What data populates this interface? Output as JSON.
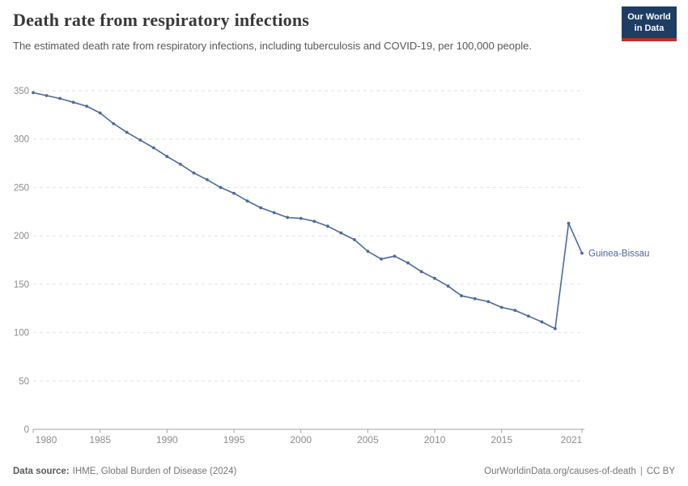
{
  "header": {
    "title": "Death rate from respiratory infections",
    "subtitle": "The estimated death rate from respiratory infections, including tuberculosis and COVID-19, per 100,000 people."
  },
  "logo": {
    "line1": "Our World",
    "line2": "in Data",
    "bg_color": "#1d3d63",
    "stripe_color": "#bc2f2a"
  },
  "chart_data": {
    "type": "line",
    "title": "Death rate from respiratory infections",
    "xlabel": "",
    "ylabel": "",
    "x": [
      1980,
      1981,
      1982,
      1983,
      1984,
      1985,
      1986,
      1987,
      1988,
      1989,
      1990,
      1991,
      1992,
      1993,
      1994,
      1995,
      1996,
      1997,
      1998,
      1999,
      2000,
      2001,
      2002,
      2003,
      2004,
      2005,
      2006,
      2007,
      2008,
      2009,
      2010,
      2011,
      2012,
      2013,
      2014,
      2015,
      2016,
      2017,
      2018,
      2019,
      2020,
      2021
    ],
    "series": [
      {
        "name": "Guinea-Bissau",
        "color": "#4c6a9c",
        "values": [
          348,
          345,
          342,
          338,
          334,
          327,
          316,
          307,
          299,
          291,
          282,
          274,
          265,
          258,
          250,
          244,
          236,
          229,
          224,
          219,
          218,
          215,
          210,
          203,
          196,
          184,
          176,
          179,
          172,
          163,
          156,
          148,
          138,
          135,
          132,
          126,
          123,
          117,
          111,
          104,
          213,
          182
        ]
      }
    ],
    "end_label": "Guinea-Bissau",
    "xlim": [
      1980,
      2021
    ],
    "ylim": [
      0,
      350
    ],
    "x_ticks": [
      "1980",
      "1985",
      "1990",
      "1995",
      "2000",
      "2005",
      "2010",
      "2015",
      "2021"
    ],
    "x_tick_values": [
      1980,
      1985,
      1990,
      1995,
      2000,
      2005,
      2010,
      2015,
      2021
    ],
    "y_ticks": [
      "0",
      "50",
      "100",
      "150",
      "200",
      "250",
      "300",
      "350"
    ],
    "y_tick_values": [
      0,
      50,
      100,
      150,
      200,
      250,
      300,
      350
    ],
    "grid": "horizontal-dashed",
    "grid_color": "#e2e2e2",
    "axis_color": "#a3a3a3",
    "tick_label_color": "#8c8c8c",
    "legend_position": "end-of-line"
  },
  "footer": {
    "source_label": "Data source:",
    "source_name": "IHME, Global Burden of Disease (2024)",
    "attribution_url": "OurWorldinData.org/causes-of-death",
    "separator": "|",
    "license": "CC BY"
  }
}
